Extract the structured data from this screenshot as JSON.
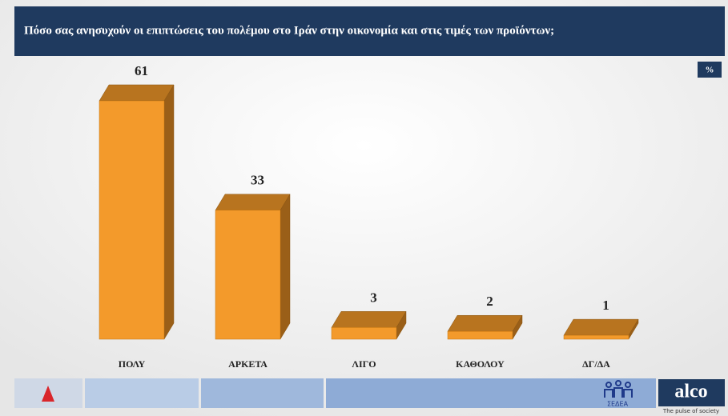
{
  "chart_data": {
    "type": "bar3d",
    "title": "Πόσο σας ανησυχούν οι επιπτώσεις του πολέμου στο Ιράν στην οικονομία και στις τιμές των προϊόντων;",
    "unit_label": "%",
    "categories": [
      "ΠΟΛΥ",
      "ΑΡΚΕΤΑ",
      "ΛΙΓΟ",
      "ΚΑΘΟΛΟΥ",
      "ΔΓ/ΔΑ"
    ],
    "values": [
      61,
      33,
      3,
      2,
      1
    ],
    "color": "#f39a2b"
  },
  "footer": {
    "partner": "ΣΕΔΕΑ",
    "brand": "alco",
    "tagline": "The pulse of society"
  }
}
